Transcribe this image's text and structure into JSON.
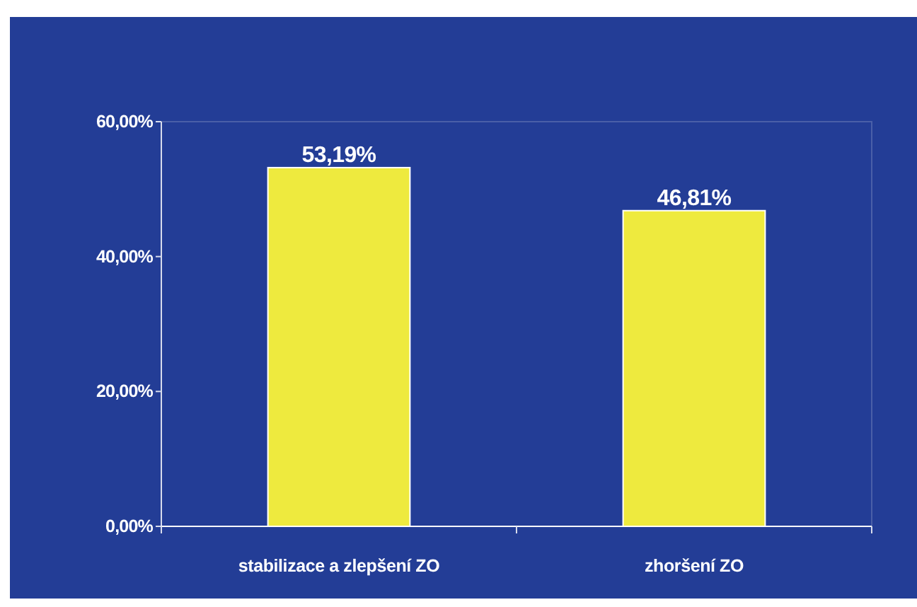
{
  "chart_data": {
    "type": "bar",
    "categories": [
      "stabilizace a zlepšení ZO",
      "zhoršení ZO"
    ],
    "values": [
      53.19,
      46.81
    ],
    "color": "#eeea3e",
    "value_labels": [
      "53,19%",
      "46,81%"
    ],
    "ylim": [
      0,
      60
    ],
    "yticks": [
      {
        "value": 0,
        "label": "0,00%"
      },
      {
        "value": 20,
        "label": "20,00%"
      },
      {
        "value": 40,
        "label": "40,00%"
      },
      {
        "value": 60,
        "label": "60,00%"
      }
    ],
    "grid": false
  }
}
